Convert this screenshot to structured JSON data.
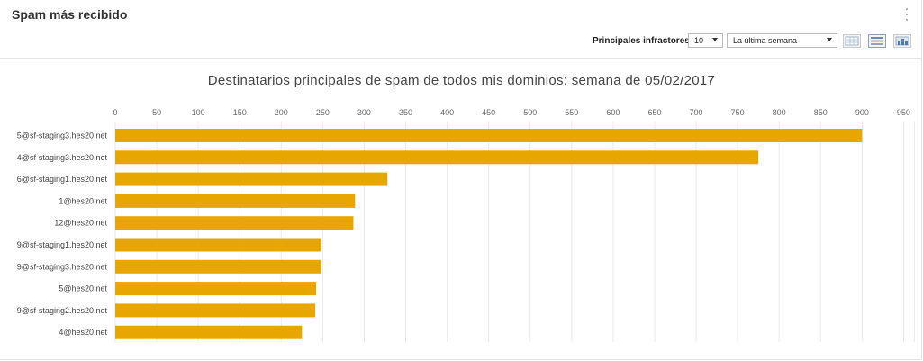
{
  "header": {
    "title": "Spam más recibido",
    "menu_icon": "kebab-vertical-icon"
  },
  "toolbar": {
    "top_label": "Principales infractores",
    "count_value": "10",
    "range_value": "La última semana",
    "view_buttons": [
      "table-view-icon",
      "list-view-icon",
      "chart-view-icon"
    ]
  },
  "chart_data": {
    "type": "bar",
    "orientation": "horizontal",
    "title": "Destinatarios principales de spam de todos mis dominios: semana de 05/02/2017",
    "categories": [
      "5@sf-staging3.hes20.net",
      "4@sf-staging3.hes20.net",
      "6@sf-staging1.hes20.net",
      "1@hes20.net",
      "12@hes20.net",
      "9@sf-staging1.hes20.net",
      "9@sf-staging3.hes20.net",
      "5@hes20.net",
      "9@sf-staging2.hes20.net",
      "4@hes20.net"
    ],
    "values": [
      900,
      775,
      328,
      289,
      287,
      248,
      248,
      242,
      241,
      225
    ],
    "xlim": [
      0,
      950
    ],
    "xticks": [
      0,
      50,
      100,
      150,
      200,
      250,
      300,
      350,
      400,
      450,
      500,
      550,
      600,
      650,
      700,
      750,
      800,
      850,
      900,
      950
    ],
    "axis_position": "top",
    "grid": true,
    "bar_color": "#E8A600",
    "xlabel": "",
    "ylabel": ""
  }
}
